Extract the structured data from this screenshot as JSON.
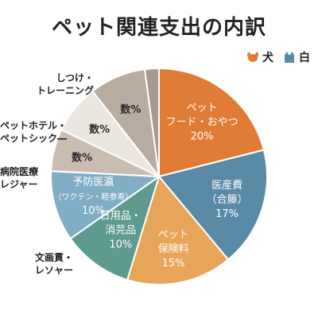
{
  "title": "ペット関連支出の内訳",
  "legend": [
    {
      "label": "犬",
      "color": "#e07b36",
      "icon": "dog-icon"
    },
    {
      "label": "白",
      "color": "#5a8aa6",
      "icon": "cat-icon"
    }
  ],
  "chart_data": {
    "type": "pie",
    "title": "ペット関連支出の内訳",
    "slices": [
      {
        "lines": [
          "ペット",
          "フード・おやつ",
          "20%"
        ],
        "value": 20,
        "color": "#e07b36"
      },
      {
        "lines": [
          "医産費",
          "（合籐）",
          "17%"
        ],
        "value": 17,
        "color": "#5a8aa6"
      },
      {
        "lines": [
          "ペット",
          "保険料",
          "15%"
        ],
        "value": 15,
        "color": "#e8a458"
      },
      {
        "lines": [
          "日用品・",
          "消芫品",
          "10%"
        ],
        "value": 10,
        "color": "#5f9a8f"
      },
      {
        "lines": [
          "予防医瀛",
          "（ワクテン・睦参寿）",
          "10%"
        ],
        "value": 10,
        "color": "#80aec4"
      },
      {
        "lines": [
          "数%"
        ],
        "value": 6,
        "color": "#c9bdb1"
      },
      {
        "lines": [
          "数%"
        ],
        "value": 7,
        "color": "#ebe6e0"
      },
      {
        "lines": [
          "数%"
        ],
        "value": 8,
        "color": "#b8aca1"
      },
      {
        "lines": [],
        "value": 2,
        "color": "#a89a8d"
      }
    ],
    "outside_labels": [
      {
        "lines": [
          "しつけ・",
          "トレーニング"
        ]
      },
      {
        "lines": [
          "ペットホテル・",
          "ペットシック―"
        ]
      },
      {
        "lines": [
          "病院医療",
          "レジャー"
        ]
      },
      {
        "lines": [
          "文画貫・",
          "レソャー"
        ]
      }
    ]
  }
}
